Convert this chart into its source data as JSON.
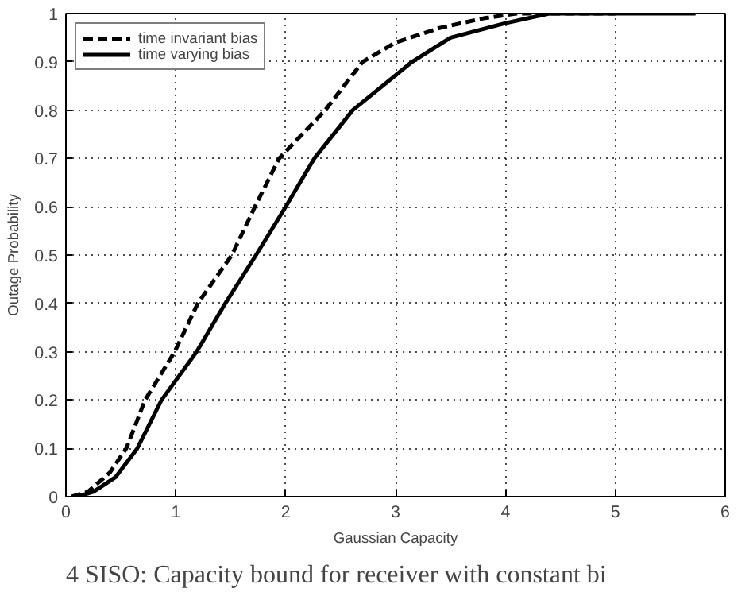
{
  "chart_data": {
    "type": "line",
    "xlabel": "Gaussian Capacity",
    "ylabel": "Outage Probability",
    "xlim": [
      0,
      6
    ],
    "ylim": [
      0,
      1
    ],
    "xticks": [
      0,
      1,
      2,
      3,
      4,
      5,
      6
    ],
    "yticks": [
      0,
      0.1,
      0.2,
      0.3,
      0.4,
      0.5,
      0.6,
      0.7,
      0.8,
      0.9,
      1
    ],
    "grid": true,
    "legend": "top left",
    "marker": "none",
    "annotations": [
      "4   SISO: Capacity bound for receiver with constant bi"
    ],
    "series": [
      {
        "name": "time invariant bias",
        "color": "#000000",
        "line_style": "dashed",
        "x": [
          0.05,
          0.2,
          0.4,
          0.55,
          0.72,
          0.99,
          1.2,
          1.51,
          1.72,
          1.94,
          2.36,
          2.7,
          3.0,
          3.4,
          3.8,
          4.1,
          5.0
        ],
        "values": [
          0,
          0.01,
          0.05,
          0.1,
          0.2,
          0.3,
          0.4,
          0.5,
          0.6,
          0.7,
          0.8,
          0.9,
          0.94,
          0.97,
          0.99,
          1.0,
          1.0
        ]
      },
      {
        "name": "time varying bias",
        "color": "#000000",
        "line_style": "solid",
        "x": [
          0.1,
          0.25,
          0.45,
          0.65,
          0.87,
          1.19,
          1.45,
          1.73,
          2.0,
          2.26,
          2.61,
          3.15,
          3.5,
          4.0,
          4.4,
          5.73
        ],
        "values": [
          0,
          0.01,
          0.04,
          0.1,
          0.2,
          0.3,
          0.4,
          0.5,
          0.6,
          0.7,
          0.8,
          0.9,
          0.95,
          0.98,
          1.0,
          1.0
        ]
      }
    ]
  }
}
